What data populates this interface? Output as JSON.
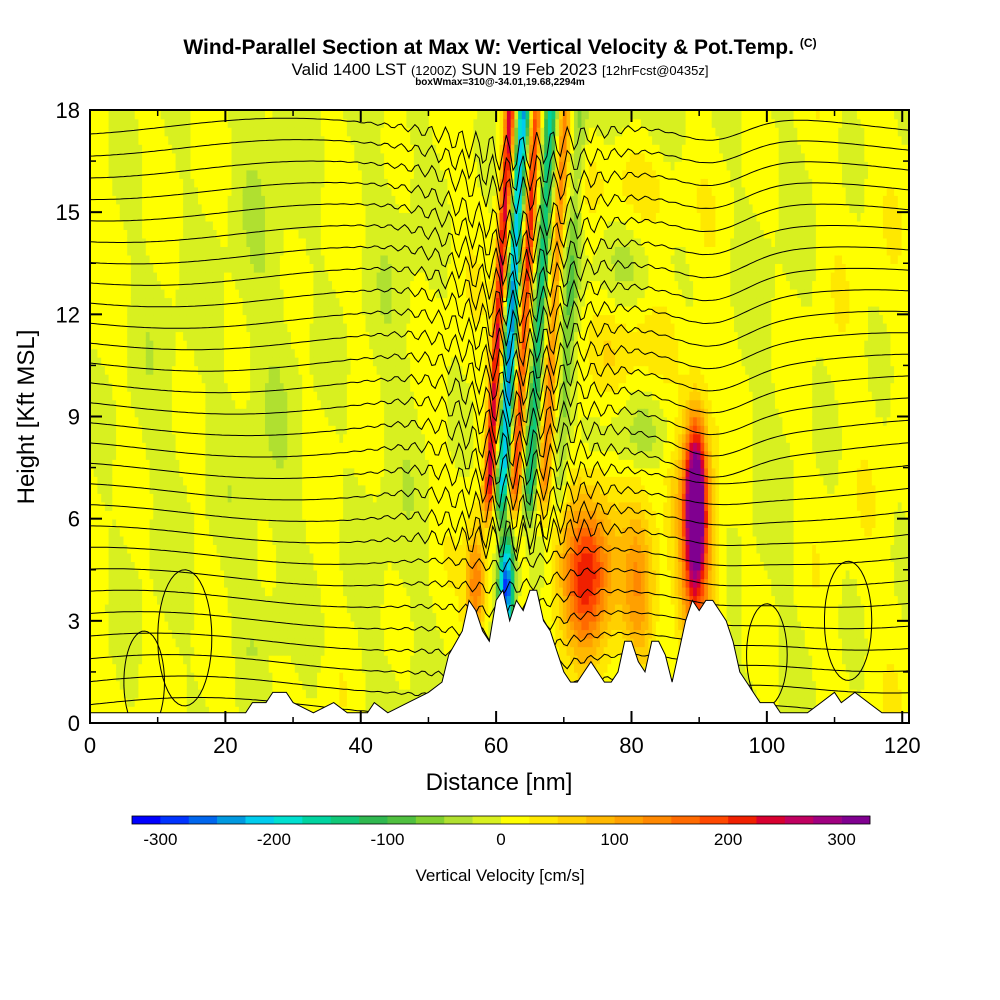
{
  "header": {
    "title": "Wind-Parallel Section at Max W: Vertical Velocity & Pot.Temp.",
    "copyright": "(C)",
    "subtitle_main": "Valid 1400 LST",
    "subtitle_utc": "(1200Z)",
    "subtitle_date": "SUN 19 Feb 2023",
    "subtitle_fcst": "[12hrFcst@0435z]",
    "info": "boxWmax=310@-34.01,19.68,2294m"
  },
  "chart_data": {
    "type": "heatmap",
    "title": "Wind-Parallel Section at Max W: Vertical Velocity & Pot.Temp.",
    "xlabel": "Distance [nm]",
    "ylabel": "Height [Kft MSL]",
    "xlim": [
      0,
      121
    ],
    "ylim": [
      0,
      18
    ],
    "xticks": [
      0,
      20,
      40,
      60,
      80,
      100,
      120
    ],
    "yticks": [
      0,
      3,
      6,
      9,
      12,
      15,
      18
    ],
    "colorbar": {
      "label": "Vertical Velocity [cm/s]",
      "ticks": [
        -300,
        -200,
        -100,
        0,
        100,
        200,
        300
      ],
      "range": [
        -325,
        325
      ],
      "colors": [
        "#0000ff",
        "#0033ff",
        "#0066ee",
        "#0099e0",
        "#00ccee",
        "#00e0d0",
        "#00d4a0",
        "#10c878",
        "#30b850",
        "#50c040",
        "#80d030",
        "#b0e030",
        "#d8f020",
        "#ffff00",
        "#ffe800",
        "#ffd000",
        "#ffb800",
        "#ffa000",
        "#ff8800",
        "#ff6a00",
        "#ff4800",
        "#f02000",
        "#d80030",
        "#c00060",
        "#a00080",
        "#800090"
      ]
    },
    "terrain_profile": [
      [
        0,
        0.3
      ],
      [
        5,
        0.3
      ],
      [
        10,
        0.3
      ],
      [
        15,
        0.3
      ],
      [
        20,
        0.3
      ],
      [
        23,
        0.3
      ],
      [
        24,
        0.6
      ],
      [
        26,
        0.6
      ],
      [
        27,
        0.9
      ],
      [
        29,
        0.9
      ],
      [
        30,
        0.6
      ],
      [
        33,
        0.3
      ],
      [
        36,
        0.6
      ],
      [
        38,
        0.3
      ],
      [
        41,
        0.3
      ],
      [
        42,
        0.6
      ],
      [
        44,
        0.3
      ],
      [
        47,
        0.6
      ],
      [
        50,
        0.9
      ],
      [
        52,
        1.2
      ],
      [
        53,
        2
      ],
      [
        55,
        2.7
      ],
      [
        56,
        3.6
      ],
      [
        57,
        3.3
      ],
      [
        58,
        2.7
      ],
      [
        59,
        2.4
      ],
      [
        60,
        3.6
      ],
      [
        61,
        3.9
      ],
      [
        62,
        3
      ],
      [
        63,
        3.6
      ],
      [
        64,
        3.3
      ],
      [
        65,
        3.9
      ],
      [
        66,
        3.9
      ],
      [
        67,
        3
      ],
      [
        68,
        2.7
      ],
      [
        69,
        2.1
      ],
      [
        70,
        1.5
      ],
      [
        71,
        1.2
      ],
      [
        72,
        1.2
      ],
      [
        73,
        1.5
      ],
      [
        74,
        1.8
      ],
      [
        75,
        1.5
      ],
      [
        76,
        1.2
      ],
      [
        77,
        1.2
      ],
      [
        78,
        1.5
      ],
      [
        79,
        2.4
      ],
      [
        80,
        2.4
      ],
      [
        81,
        1.8
      ],
      [
        82,
        1.5
      ],
      [
        83,
        2.4
      ],
      [
        84,
        2.4
      ],
      [
        85,
        2
      ],
      [
        86,
        1.2
      ],
      [
        87,
        2.1
      ],
      [
        88,
        3
      ],
      [
        89,
        3.6
      ],
      [
        90,
        3.3
      ],
      [
        91,
        3.6
      ],
      [
        92,
        3.6
      ],
      [
        93,
        3.3
      ],
      [
        94,
        3
      ],
      [
        95,
        2.4
      ],
      [
        96,
        1.5
      ],
      [
        97,
        1.2
      ],
      [
        98,
        0.9
      ],
      [
        99,
        0.6
      ],
      [
        101,
        0.6
      ],
      [
        102,
        0.3
      ],
      [
        106,
        0.3
      ],
      [
        108,
        0.6
      ],
      [
        110,
        0.9
      ],
      [
        111,
        0.6
      ],
      [
        113,
        0.9
      ],
      [
        115,
        0.6
      ],
      [
        117,
        0.3
      ],
      [
        121,
        0.3
      ]
    ],
    "updraft_bands": [
      {
        "center": 89.5,
        "z_low": 3.5,
        "z_high": 9.5,
        "max": 310
      },
      {
        "center": 73.5,
        "z_low": 1.5,
        "z_high": 7.5,
        "max": 200
      },
      {
        "center": 81,
        "z_low": 1.5,
        "z_high": 7,
        "max": 110
      },
      {
        "center": 57,
        "z_low": 3,
        "z_high": 6,
        "max": 150
      },
      {
        "center": 61,
        "z_low": 6,
        "z_high": 18,
        "max": 200,
        "tilted": true
      },
      {
        "center": 67,
        "z_low": 6,
        "z_high": 18,
        "max": 180,
        "tilted": true
      }
    ],
    "downdraft_bands": [
      {
        "center": 61.5,
        "z_low": 2.5,
        "z_high": 6,
        "min": -300
      },
      {
        "center": 63.5,
        "z_low": 6,
        "z_high": 18,
        "min": -220,
        "tilted": true
      },
      {
        "center": 68.5,
        "z_low": 6,
        "z_high": 18,
        "min": -150,
        "tilted": true
      }
    ],
    "theta_contours": "potential temperature isentropes, spaced ~0.6 Kft aloft, wave-perturbed over terrain 55-100 nm"
  }
}
